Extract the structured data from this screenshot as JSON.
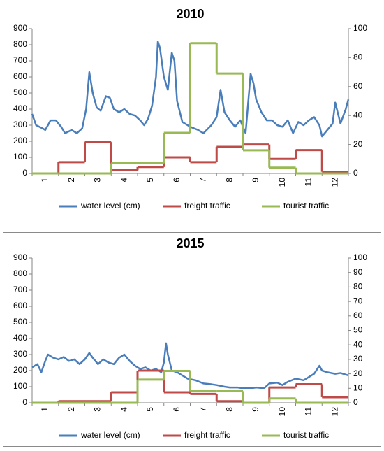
{
  "chart_data": [
    {
      "type": "line",
      "title": "2010",
      "categories": [
        "1",
        "2",
        "3",
        "4",
        "5",
        "6",
        "7",
        "8",
        "9",
        "10",
        "11",
        "12"
      ],
      "xlim": [
        0.5,
        12.5
      ],
      "ylim": [
        0,
        900
      ],
      "yticks": [
        0,
        100,
        200,
        300,
        400,
        500,
        600,
        700,
        800,
        900
      ],
      "y2lim": [
        0,
        100
      ],
      "y2ticks": [
        0,
        20,
        40,
        60,
        80,
        100
      ],
      "legend": "bottom",
      "series": [
        {
          "name": "water level (cm)",
          "color": "#4a7ebb",
          "x": [
            0.5,
            0.65,
            0.9,
            1.0,
            1.2,
            1.4,
            1.6,
            1.75,
            2.0,
            2.2,
            2.4,
            2.55,
            2.67,
            2.8,
            2.95,
            3.1,
            3.3,
            3.45,
            3.6,
            3.8,
            4.0,
            4.2,
            4.4,
            4.6,
            4.75,
            4.9,
            5.05,
            5.2,
            5.27,
            5.35,
            5.5,
            5.65,
            5.8,
            5.9,
            6.0,
            6.2,
            6.5,
            6.8,
            7.0,
            7.3,
            7.5,
            7.65,
            7.8,
            8.0,
            8.2,
            8.4,
            8.6,
            8.79,
            8.9,
            9.0,
            9.2,
            9.4,
            9.6,
            9.8,
            10.0,
            10.2,
            10.4,
            10.6,
            10.8,
            11.0,
            11.2,
            11.4,
            11.5,
            11.7,
            11.9,
            12.0,
            12.2,
            12.4,
            12.5
          ],
          "values": [
            370,
            300,
            280,
            270,
            330,
            330,
            290,
            250,
            270,
            250,
            280,
            400,
            630,
            500,
            410,
            390,
            480,
            470,
            400,
            380,
            400,
            370,
            360,
            330,
            300,
            340,
            420,
            600,
            820,
            780,
            600,
            520,
            750,
            700,
            450,
            320,
            290,
            270,
            250,
            300,
            350,
            520,
            380,
            330,
            290,
            330,
            250,
            620,
            560,
            460,
            380,
            330,
            330,
            300,
            290,
            330,
            250,
            320,
            300,
            330,
            350,
            300,
            230,
            270,
            310,
            440,
            310,
            400,
            460
          ]
        },
        {
          "name": "freight traffic",
          "color": "#be4b48",
          "step": true,
          "values": [
            0,
            70,
            195,
            20,
            40,
            100,
            70,
            165,
            180,
            90,
            145,
            10
          ]
        },
        {
          "name": "tourist traffic",
          "color": "#98b954",
          "step": true,
          "axis": "y2",
          "values": [
            0,
            0,
            0,
            7,
            7,
            28,
            90,
            69,
            16,
            4,
            0,
            0
          ]
        }
      ]
    },
    {
      "type": "line",
      "title": "2015",
      "categories": [
        "1",
        "2",
        "3",
        "4",
        "5",
        "6",
        "7",
        "8",
        "9",
        "10",
        "11",
        "12"
      ],
      "xlim": [
        0.5,
        12.5
      ],
      "ylim": [
        0,
        900
      ],
      "yticks": [
        0,
        100,
        200,
        300,
        400,
        500,
        600,
        700,
        800,
        900
      ],
      "y2lim": [
        0,
        100
      ],
      "y2ticks": [
        0,
        10,
        20,
        30,
        40,
        50,
        60,
        70,
        80,
        90,
        100
      ],
      "legend": "bottom",
      "series": [
        {
          "name": "water level (cm)",
          "color": "#4a7ebb",
          "x": [
            0.5,
            0.7,
            0.85,
            1.0,
            1.1,
            1.3,
            1.5,
            1.7,
            1.9,
            2.1,
            2.3,
            2.5,
            2.67,
            2.8,
            3.0,
            3.2,
            3.4,
            3.6,
            3.8,
            4.0,
            4.2,
            4.4,
            4.6,
            4.8,
            5.0,
            5.2,
            5.4,
            5.5,
            5.58,
            5.65,
            5.8,
            6.0,
            6.2,
            6.4,
            6.7,
            7.0,
            7.3,
            7.5,
            7.8,
            8.0,
            8.3,
            8.5,
            8.8,
            9.0,
            9.3,
            9.5,
            9.8,
            10.0,
            10.2,
            10.5,
            10.8,
            11.0,
            11.2,
            11.4,
            11.5,
            11.7,
            12.0,
            12.2,
            12.5
          ],
          "values": [
            220,
            240,
            190,
            260,
            300,
            280,
            270,
            285,
            260,
            270,
            240,
            270,
            310,
            280,
            240,
            270,
            250,
            240,
            280,
            300,
            260,
            230,
            210,
            220,
            200,
            210,
            190,
            250,
            370,
            300,
            200,
            190,
            170,
            150,
            140,
            120,
            115,
            110,
            100,
            95,
            95,
            90,
            90,
            95,
            90,
            120,
            125,
            110,
            130,
            150,
            140,
            160,
            180,
            230,
            200,
            190,
            180,
            185,
            170
          ]
        },
        {
          "name": "freight traffic",
          "color": "#be4b48",
          "step": true,
          "values": [
            0,
            10,
            10,
            65,
            200,
            65,
            55,
            10,
            0,
            95,
            115,
            35
          ]
        },
        {
          "name": "tourist traffic",
          "color": "#98b954",
          "step": true,
          "axis": "y2",
          "values": [
            0,
            0,
            0,
            0,
            16,
            22,
            8,
            8,
            0,
            3,
            0,
            0
          ]
        }
      ]
    }
  ]
}
